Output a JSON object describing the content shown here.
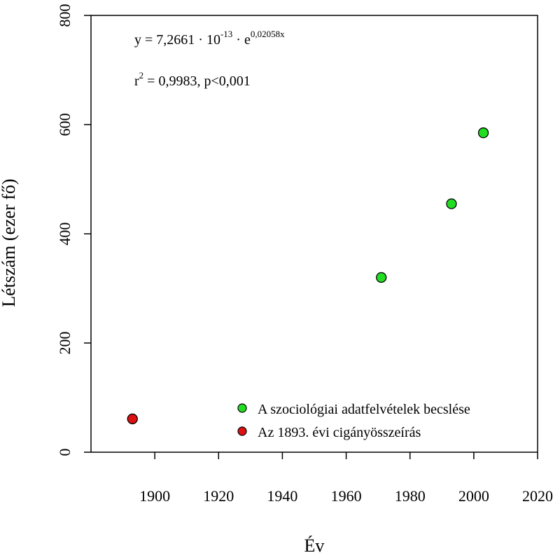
{
  "chart_data": {
    "type": "scatter",
    "xlabel": "Év",
    "ylabel": "Létszám (ezer fő)",
    "xlim": [
      1880,
      2020
    ],
    "ylim": [
      0,
      800
    ],
    "xticks": [
      "1900",
      "1920",
      "1940",
      "1960",
      "1980",
      "2000",
      "2020"
    ],
    "yticks": [
      "0",
      "200",
      "400",
      "600",
      "800"
    ],
    "grid": false,
    "legend_position": "bottom-right",
    "equation": {
      "prefix": "y = 7,2661 · 10",
      "exp10": "-13",
      "mid": " · e",
      "expE": "0,02058x"
    },
    "r2": {
      "prefix": "r",
      "sup": "2",
      "rest": " = 0,9983, p<0,001"
    },
    "series": [
      {
        "name": "A szociológiai adatfelvételek becslése",
        "color": "#22dd22",
        "points": [
          {
            "x": 1971,
            "y": 320
          },
          {
            "x": 1993,
            "y": 455
          },
          {
            "x": 2003,
            "y": 585
          }
        ]
      },
      {
        "name": "Az 1893. évi cigányösszeírás",
        "color": "#dd1111",
        "points": [
          {
            "x": 1893,
            "y": 61
          }
        ]
      }
    ],
    "fit": {
      "type": "exponential",
      "a": 7.2661e-13,
      "b": 0.02058,
      "x_range": [
        1893,
        2015
      ],
      "color": "#1010cc"
    }
  }
}
